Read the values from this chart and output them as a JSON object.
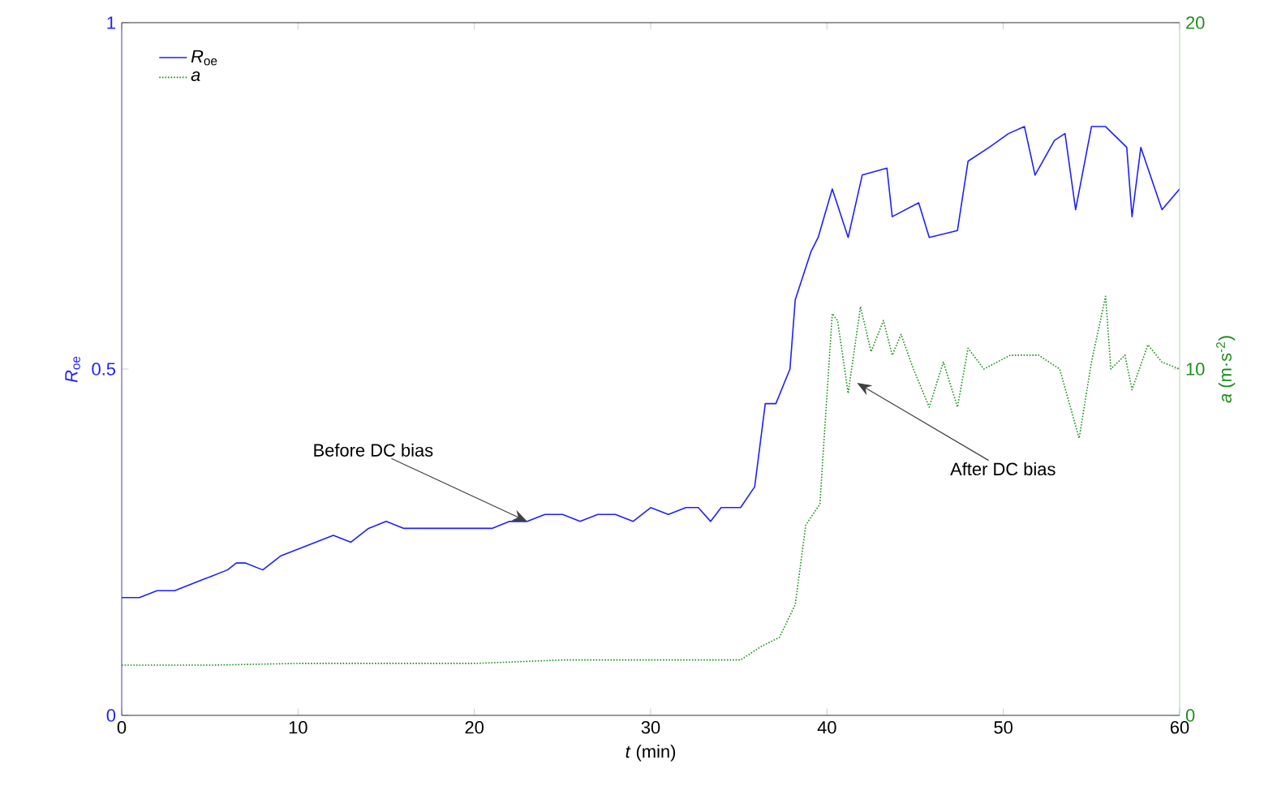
{
  "chart_data": {
    "type": "line",
    "xlabel": "*t* (min)",
    "ylabel": "*R*$_{oe}$",
    "y2label": "*a* (m·s$^{-2}$)",
    "xlim": [
      0,
      60
    ],
    "xticks": [
      0,
      10,
      20,
      30,
      40,
      50,
      60
    ],
    "ylim": [
      0,
      1
    ],
    "yticks": [
      0,
      0.5,
      1
    ],
    "y2lim": [
      0,
      20
    ],
    "y2ticks": [
      0,
      10,
      20
    ],
    "legend": "top left",
    "grid": false,
    "marker": "none",
    "series": [
      {
        "name": "*R*$_{oe}$",
        "color": "#1f1fff",
        "line_style": "solid",
        "x": [
          0,
          1,
          2,
          3,
          4,
          5,
          6,
          6.5,
          7,
          8,
          9,
          10,
          11,
          12,
          13,
          14,
          15,
          16,
          17,
          18,
          19,
          20,
          21,
          22,
          23,
          24,
          25,
          26,
          27,
          28,
          29,
          30,
          31,
          32,
          32.7,
          33.4,
          34,
          35.1,
          35.9,
          36.5,
          37.1,
          37.9,
          38.2,
          39.1,
          39.5,
          40.3,
          41.2,
          42.0,
          43.4,
          43.7,
          45.2,
          45.8,
          47.4,
          48,
          49.2,
          50.3,
          51.2,
          51.8,
          52.9,
          53.5,
          54.1,
          55,
          55.8,
          57,
          57.3,
          57.8,
          59,
          60
        ],
        "values": [
          0.17,
          0.17,
          0.18,
          0.18,
          0.19,
          0.2,
          0.21,
          0.22,
          0.22,
          0.21,
          0.23,
          0.24,
          0.25,
          0.26,
          0.25,
          0.27,
          0.28,
          0.27,
          0.27,
          0.27,
          0.27,
          0.27,
          0.27,
          0.28,
          0.28,
          0.29,
          0.29,
          0.28,
          0.29,
          0.29,
          0.28,
          0.3,
          0.29,
          0.3,
          0.3,
          0.28,
          0.3,
          0.3,
          0.33,
          0.45,
          0.45,
          0.5,
          0.6,
          0.67,
          0.69,
          0.76,
          0.69,
          0.78,
          0.79,
          0.72,
          0.74,
          0.69,
          0.7,
          0.8,
          0.82,
          0.84,
          0.85,
          0.78,
          0.83,
          0.84,
          0.73,
          0.85,
          0.85,
          0.82,
          0.72,
          0.82,
          0.73,
          0.76
        ]
      },
      {
        "name": "*a*",
        "color": "#1a8c1a",
        "line_style": "dotted",
        "axis": "y2",
        "x": [
          0,
          5,
          10,
          15,
          20,
          25,
          30,
          35.1,
          36.3,
          37.3,
          38.2,
          38.8,
          39.6,
          39.8,
          40.3,
          40.6,
          41.2,
          41.9,
          42.5,
          43.2,
          43.7,
          44.2,
          44.9,
          45.8,
          46.6,
          47.4,
          48,
          48.9,
          50.4,
          52,
          53.2,
          54.3,
          55,
          55.8,
          56.1,
          56.9,
          57.3,
          58.2,
          59,
          60
        ],
        "values": [
          1.45,
          1.45,
          1.5,
          1.5,
          1.5,
          1.6,
          1.6,
          1.6,
          2,
          2.25,
          3.2,
          5.5,
          6.1,
          7.7,
          11.6,
          11.4,
          9.3,
          11.8,
          10.5,
          11.4,
          10.4,
          11,
          10,
          8.9,
          10.2,
          8.9,
          10.6,
          10,
          10.4,
          10.4,
          10,
          8,
          10.2,
          12.1,
          10,
          10.4,
          9.4,
          10.7,
          10.2,
          10
        ]
      }
    ],
    "annotations": [
      {
        "text": "Before DC bias",
        "x": 23,
        "y": 0.28
      },
      {
        "text": "After DC bias",
        "x": 41.7,
        "y": 0.48
      }
    ]
  }
}
